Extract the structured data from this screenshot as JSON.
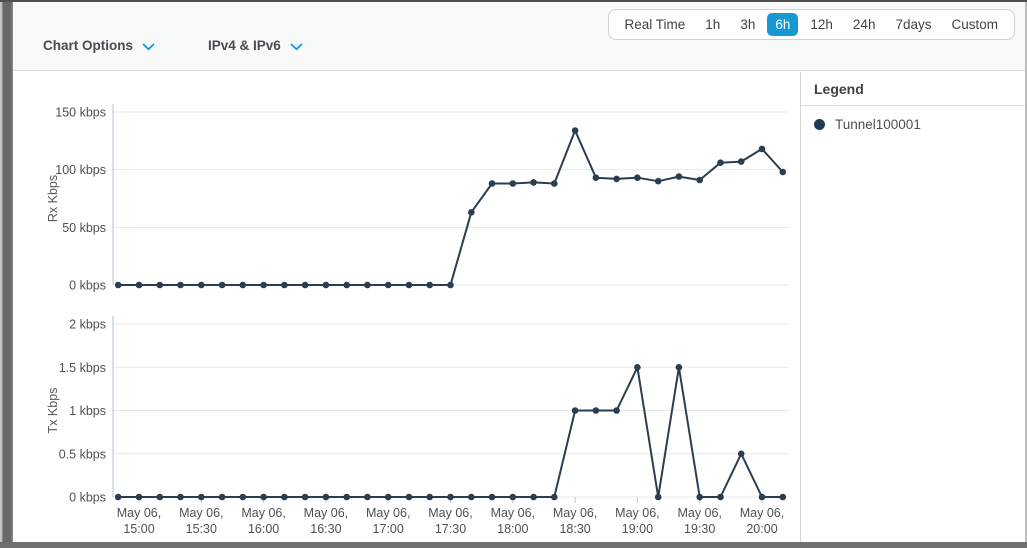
{
  "header": {
    "chart_options_label": "Chart Options",
    "ip_filter_label": "IPv4 & IPv6",
    "time_range_buttons": [
      "Real Time",
      "1h",
      "3h",
      "6h",
      "12h",
      "24h",
      "7days",
      "Custom"
    ],
    "active_time_range": "6h"
  },
  "legend": {
    "title": "Legend",
    "items": [
      {
        "label": "Tunnel100001",
        "color": "#1f3a55"
      }
    ]
  },
  "colors": {
    "accent_blue": "#1699d3",
    "series_line": "#2b3d50",
    "gridline": "#e8e8e8",
    "axis_line": "#ccd6e0",
    "tick_text": "#4b5156"
  },
  "chart_data": [
    {
      "type": "line",
      "ylabel": "Rx Kbps",
      "ylim": [
        0,
        150
      ],
      "ytick_values": [
        0,
        50,
        100,
        150
      ],
      "ytick_labels": [
        "0 kbps",
        "50 kbps",
        "100 kbps",
        "150 kbps"
      ],
      "x": [
        "14:50",
        "15:00",
        "15:10",
        "15:20",
        "15:30",
        "15:40",
        "15:50",
        "16:00",
        "16:10",
        "16:20",
        "16:30",
        "16:40",
        "16:50",
        "17:00",
        "17:10",
        "17:20",
        "17:30",
        "17:40",
        "17:50",
        "18:00",
        "18:10",
        "18:20",
        "18:30",
        "18:40",
        "18:50",
        "19:00",
        "19:10",
        "19:20",
        "19:30",
        "19:40",
        "19:50",
        "20:00",
        "20:10"
      ],
      "x_tick_indices": [
        1,
        4,
        7,
        10,
        13,
        16,
        19,
        22,
        25,
        28,
        31
      ],
      "x_tick_labels": [
        [
          "May 06,",
          "15:00"
        ],
        [
          "May 06,",
          "15:30"
        ],
        [
          "May 06,",
          "16:00"
        ],
        [
          "May 06,",
          "16:30"
        ],
        [
          "May 06,",
          "17:00"
        ],
        [
          "May 06,",
          "17:30"
        ],
        [
          "May 06,",
          "18:00"
        ],
        [
          "May 06,",
          "18:30"
        ],
        [
          "May 06,",
          "19:00"
        ],
        [
          "May 06,",
          "19:30"
        ],
        [
          "May 06,",
          "20:00"
        ]
      ],
      "show_x_labels": false,
      "series": [
        {
          "name": "Tunnel100001",
          "values": [
            0,
            0,
            0,
            0,
            0,
            0,
            0,
            0,
            0,
            0,
            0,
            0,
            0,
            0,
            0,
            0,
            0,
            63,
            88,
            88,
            89,
            88,
            134,
            93,
            92,
            93,
            90,
            94,
            91,
            106,
            107,
            118,
            98
          ]
        }
      ],
      "legend_position": "right",
      "grid": true
    },
    {
      "type": "line",
      "ylabel": "Tx Kbps",
      "ylim": [
        0,
        2
      ],
      "ytick_values": [
        0,
        0.5,
        1,
        1.5,
        2
      ],
      "ytick_labels": [
        "0 kbps",
        "0.5 kbps",
        "1 kbps",
        "1.5 kbps",
        "2 kbps"
      ],
      "x": [
        "14:50",
        "15:00",
        "15:10",
        "15:20",
        "15:30",
        "15:40",
        "15:50",
        "16:00",
        "16:10",
        "16:20",
        "16:30",
        "16:40",
        "16:50",
        "17:00",
        "17:10",
        "17:20",
        "17:30",
        "17:40",
        "17:50",
        "18:00",
        "18:10",
        "18:20",
        "18:30",
        "18:40",
        "18:50",
        "19:00",
        "19:10",
        "19:20",
        "19:30",
        "19:40",
        "19:50",
        "20:00",
        "20:10"
      ],
      "x_tick_indices": [
        1,
        4,
        7,
        10,
        13,
        16,
        19,
        22,
        25,
        28,
        31
      ],
      "x_tick_labels": [
        [
          "May 06,",
          "15:00"
        ],
        [
          "May 06,",
          "15:30"
        ],
        [
          "May 06,",
          "16:00"
        ],
        [
          "May 06,",
          "16:30"
        ],
        [
          "May 06,",
          "17:00"
        ],
        [
          "May 06,",
          "17:30"
        ],
        [
          "May 06,",
          "18:00"
        ],
        [
          "May 06,",
          "18:30"
        ],
        [
          "May 06,",
          "19:00"
        ],
        [
          "May 06,",
          "19:30"
        ],
        [
          "May 06,",
          "20:00"
        ]
      ],
      "show_x_labels": true,
      "series": [
        {
          "name": "Tunnel100001",
          "values": [
            0,
            0,
            0,
            0,
            0,
            0,
            0,
            0,
            0,
            0,
            0,
            0,
            0,
            0,
            0,
            0,
            0,
            0,
            0,
            0,
            0,
            0,
            1,
            1,
            1,
            1.5,
            0,
            1.5,
            0,
            0,
            0.5,
            0,
            0
          ]
        }
      ],
      "legend_position": "right",
      "grid": true
    }
  ]
}
